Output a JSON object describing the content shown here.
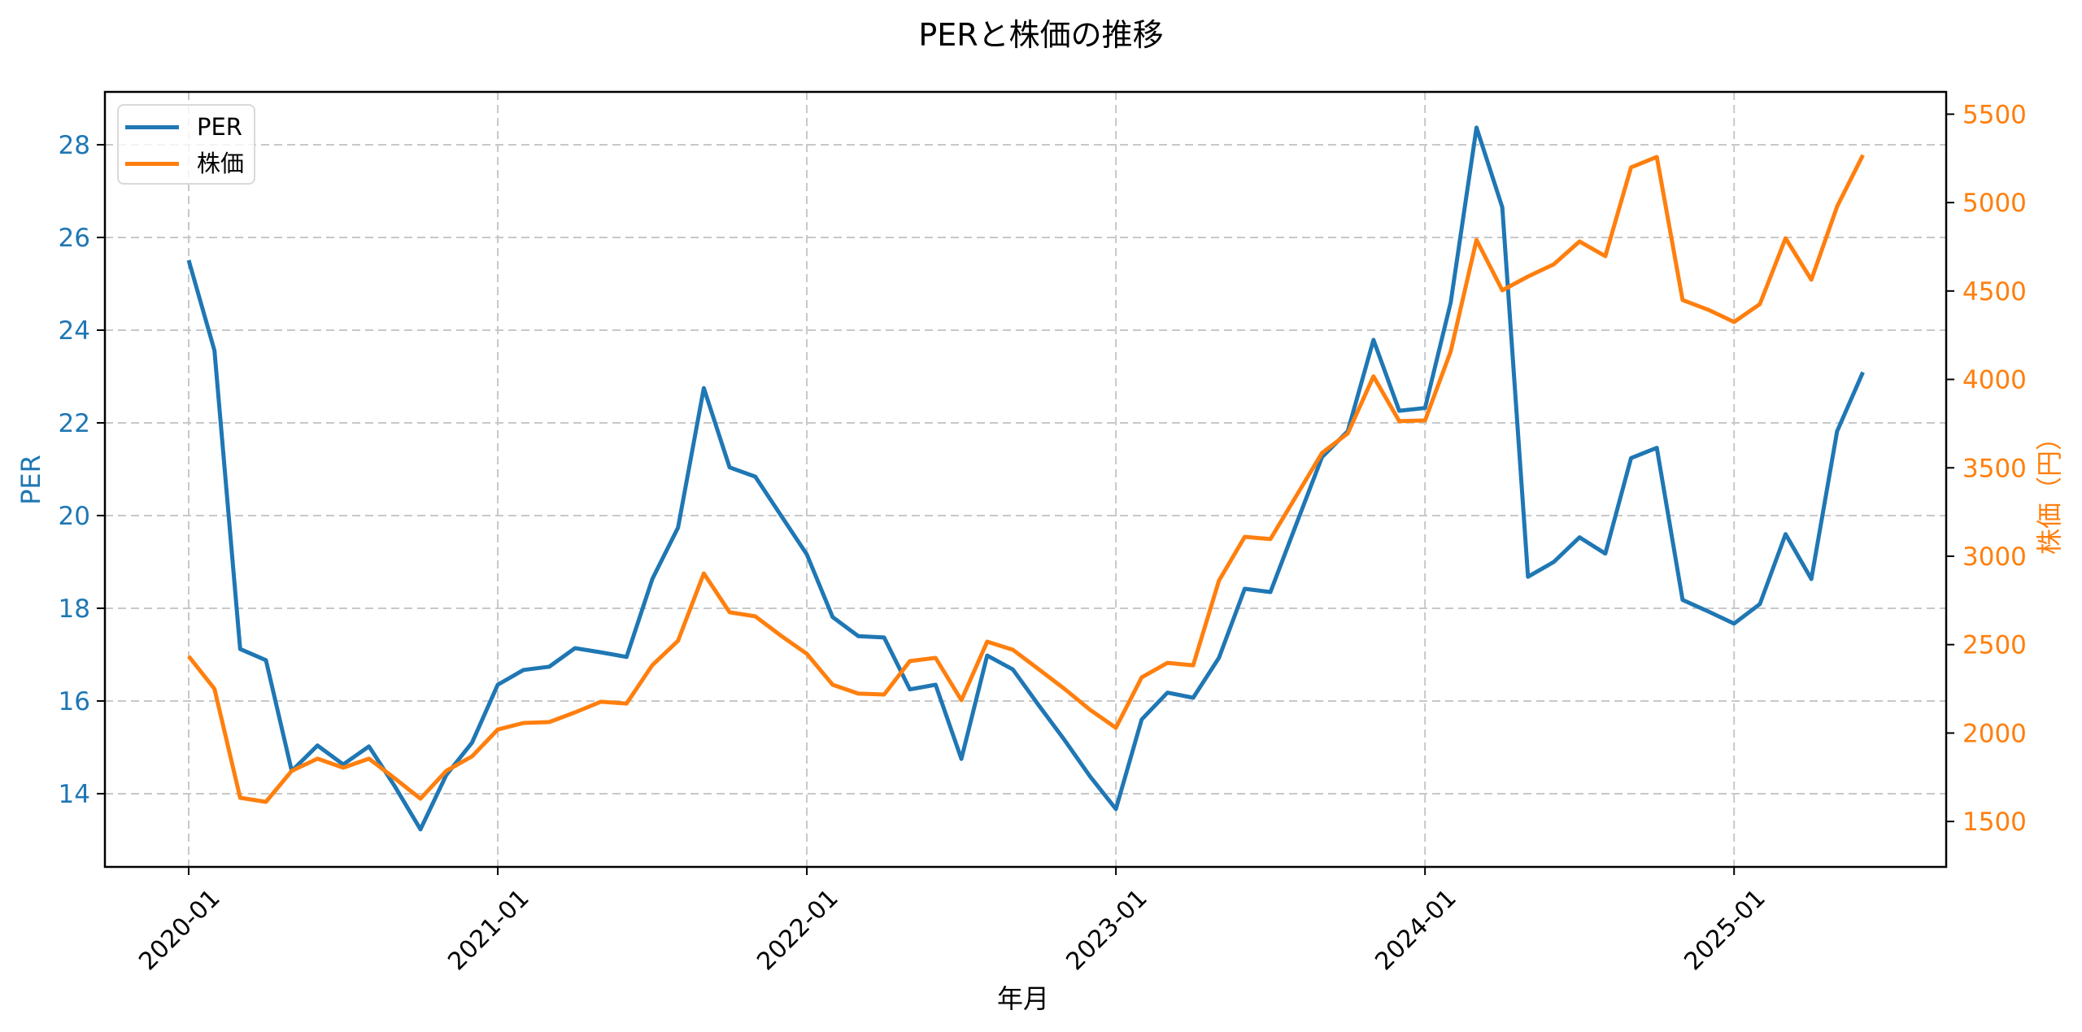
{
  "title": "PERと株価の推移",
  "xlabel": "年月",
  "ylabel_left": "PER",
  "ylabel_right": "株価（円）",
  "legend": [
    {
      "label": "PER",
      "color": "#1f77b4"
    },
    {
      "label": "株価",
      "color": "#ff7f0e"
    }
  ],
  "colors": {
    "per": "#1f77b4",
    "price": "#ff7f0e",
    "grid": "#c8c8c8",
    "axis": "#000000"
  },
  "chart_data": {
    "type": "line",
    "title": "PERと株価の推移",
    "xlabel": "年月",
    "ylabel": "PER",
    "ylabel_secondary": "株価（円）",
    "x_tick_labels": [
      "2020-01",
      "2021-01",
      "2022-01",
      "2023-01",
      "2024-01",
      "2025-01"
    ],
    "y_ticks_left": [
      14,
      16,
      18,
      20,
      22,
      24,
      26,
      28
    ],
    "y_ticks_right": [
      1500,
      2000,
      2500,
      3000,
      3500,
      4000,
      4500,
      5000,
      5500
    ],
    "ylim_left": [
      12.42,
      29.14
    ],
    "ylim_right": [
      1243,
      5626
    ],
    "grid": true,
    "legend_position": "upper left",
    "x": [
      "2020-01",
      "2020-02",
      "2020-03",
      "2020-04",
      "2020-05",
      "2020-06",
      "2020-07",
      "2020-08",
      "2020-09",
      "2020-10",
      "2020-11",
      "2020-12",
      "2021-01",
      "2021-02",
      "2021-03",
      "2021-04",
      "2021-05",
      "2021-06",
      "2021-07",
      "2021-08",
      "2021-09",
      "2021-10",
      "2021-11",
      "2021-12",
      "2022-01",
      "2022-02",
      "2022-03",
      "2022-04",
      "2022-05",
      "2022-06",
      "2022-07",
      "2022-08",
      "2022-09",
      "2022-10",
      "2022-11",
      "2022-12",
      "2023-01",
      "2023-02",
      "2023-03",
      "2023-04",
      "2023-05",
      "2023-06",
      "2023-07",
      "2023-08",
      "2023-09",
      "2023-10",
      "2023-11",
      "2023-12",
      "2024-01",
      "2024-02",
      "2024-03",
      "2024-04",
      "2024-05",
      "2024-06",
      "2024-07",
      "2024-08",
      "2024-09",
      "2024-10",
      "2024-11",
      "2024-12",
      "2025-01",
      "2025-02",
      "2025-03",
      "2025-04",
      "2025-05",
      "2025-06"
    ],
    "series": [
      {
        "name": "PER",
        "axis": "left",
        "color": "#1f77b4",
        "values": [
          25.51,
          23.56,
          17.12,
          16.88,
          14.49,
          15.04,
          14.63,
          15.02,
          14.16,
          13.23,
          14.4,
          15.1,
          16.35,
          16.67,
          16.74,
          17.14,
          17.05,
          16.95,
          18.63,
          19.74,
          22.75,
          21.04,
          20.84,
          20.0,
          19.16,
          17.81,
          17.4,
          17.37,
          16.25,
          16.35,
          14.75,
          16.98,
          16.68,
          15.91,
          15.16,
          14.37,
          13.67,
          15.6,
          16.18,
          16.07,
          16.93,
          18.42,
          18.35,
          19.81,
          21.26,
          21.82,
          23.79,
          22.26,
          22.32,
          24.6,
          28.37,
          26.65,
          18.68,
          19.0,
          19.53,
          19.18,
          21.24,
          21.46,
          18.18,
          17.93,
          17.67,
          18.09,
          19.6,
          18.63,
          21.82,
          23.09
        ]
      },
      {
        "name": "株価",
        "axis": "right",
        "color": "#ff7f0e",
        "values": [
          2434,
          2250,
          1634,
          1611,
          1786,
          1855,
          1804,
          1855,
          1744,
          1629,
          1786,
          1868,
          2020,
          2057,
          2062,
          2117,
          2177,
          2167,
          2384,
          2522,
          2903,
          2683,
          2660,
          2550,
          2448,
          2273,
          2223,
          2218,
          2407,
          2425,
          2186,
          2517,
          2471,
          2361,
          2250,
          2131,
          2030,
          2315,
          2397,
          2383,
          2862,
          3110,
          3097,
          3340,
          3584,
          3695,
          4017,
          3764,
          3768,
          4159,
          4789,
          4504,
          4582,
          4651,
          4780,
          4697,
          5199,
          5258,
          4449,
          4394,
          4325,
          4426,
          4798,
          4564,
          4978,
          5268
        ]
      }
    ]
  }
}
